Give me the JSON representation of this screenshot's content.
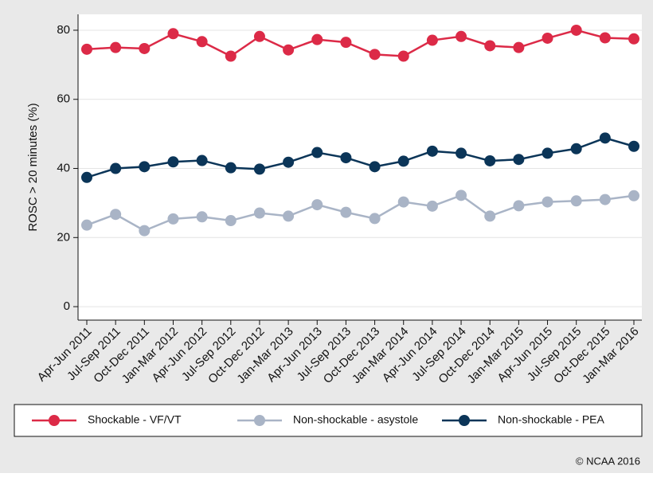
{
  "chart_data": {
    "type": "line",
    "ylabel": "ROSC > 20 minutes (%)",
    "annotation": "© NCAA 2016",
    "categories": [
      "Apr-Jun 2011",
      "Jul-Sep 2011",
      "Oct-Dec 2011",
      "Jan-Mar 2012",
      "Apr-Jun 2012",
      "Jul-Sep 2012",
      "Oct-Dec 2012",
      "Jan-Mar 2013",
      "Apr-Jun 2013",
      "Jul-Sep 2013",
      "Oct-Dec 2013",
      "Jan-Mar 2014",
      "Apr-Jun 2014",
      "Jul-Sep 2014",
      "Oct-Dec 2014",
      "Jan-Mar 2015",
      "Apr-Jun 2015",
      "Jul-Sep 2015",
      "Oct-Dec 2015",
      "Jan-Mar 2016"
    ],
    "series": [
      {
        "name": "Shockable - VF/VT",
        "color": "#dc2a47",
        "values": [
          74.5,
          75,
          74.7,
          79,
          76.7,
          72.5,
          78.2,
          74.3,
          77.3,
          76.5,
          73,
          72.5,
          77.1,
          78.2,
          75.5,
          75,
          77.7,
          80,
          77.8,
          77.5
        ]
      },
      {
        "name": "Non-shockable - asystole",
        "color": "#a9b4c6",
        "values": [
          23.6,
          26.7,
          22,
          25.4,
          26,
          24.9,
          27.1,
          26.2,
          29.5,
          27.3,
          25.5,
          30.3,
          29.1,
          32.2,
          26.2,
          29.2,
          30.3,
          30.6,
          31,
          32.1
        ]
      },
      {
        "name": "Non-shockable - PEA",
        "color": "#0b3558",
        "values": [
          37.4,
          40,
          40.5,
          41.9,
          42.3,
          40.2,
          39.8,
          41.8,
          44.6,
          43.1,
          40.5,
          42.1,
          45,
          44.4,
          42.2,
          42.6,
          44.4,
          45.7,
          48.8,
          46.4
        ]
      }
    ],
    "ylim": [
      -3.9,
      84.6
    ],
    "yticks": [
      0,
      20,
      40,
      60,
      80
    ],
    "grid": true
  }
}
